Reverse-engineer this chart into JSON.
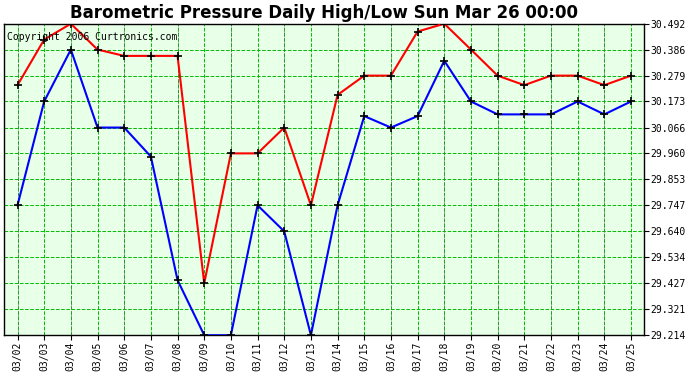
{
  "title": "Barometric Pressure Daily High/Low Sun Mar 26 00:00",
  "copyright": "Copyright 2006 Curtronics.com",
  "dates": [
    "03/02",
    "03/03",
    "03/04",
    "03/05",
    "03/06",
    "03/07",
    "03/08",
    "03/09",
    "03/10",
    "03/11",
    "03/12",
    "03/13",
    "03/14",
    "03/15",
    "03/16",
    "03/17",
    "03/18",
    "03/19",
    "03/20",
    "03/21",
    "03/22",
    "03/23",
    "03/24",
    "03/25"
  ],
  "high": [
    30.24,
    30.427,
    30.492,
    30.386,
    30.36,
    30.36,
    30.36,
    29.427,
    29.96,
    29.96,
    30.066,
    29.747,
    30.2,
    30.279,
    30.279,
    30.46,
    30.492,
    30.386,
    30.279,
    30.24,
    30.279,
    30.279,
    30.24,
    30.279
  ],
  "low": [
    29.747,
    30.173,
    30.386,
    30.066,
    30.066,
    29.947,
    29.44,
    29.214,
    29.214,
    29.747,
    29.64,
    29.214,
    29.747,
    30.113,
    30.066,
    30.113,
    30.34,
    30.173,
    30.12,
    30.12,
    30.12,
    30.173,
    30.12,
    30.173
  ],
  "ylim_min": 29.214,
  "ylim_max": 30.492,
  "ytick_values": [
    29.214,
    29.321,
    29.427,
    29.534,
    29.64,
    29.747,
    29.853,
    29.96,
    30.066,
    30.173,
    30.279,
    30.386,
    30.492
  ],
  "high_color": "#ff0000",
  "low_color": "#0000ff",
  "grid_color": "#00bb00",
  "bg_color": "#ccffcc",
  "plot_bg": "#e8ffe8",
  "title_fontsize": 12,
  "tick_fontsize": 7,
  "copyright_fontsize": 7,
  "figwidth": 6.9,
  "figheight": 3.75,
  "dpi": 100
}
